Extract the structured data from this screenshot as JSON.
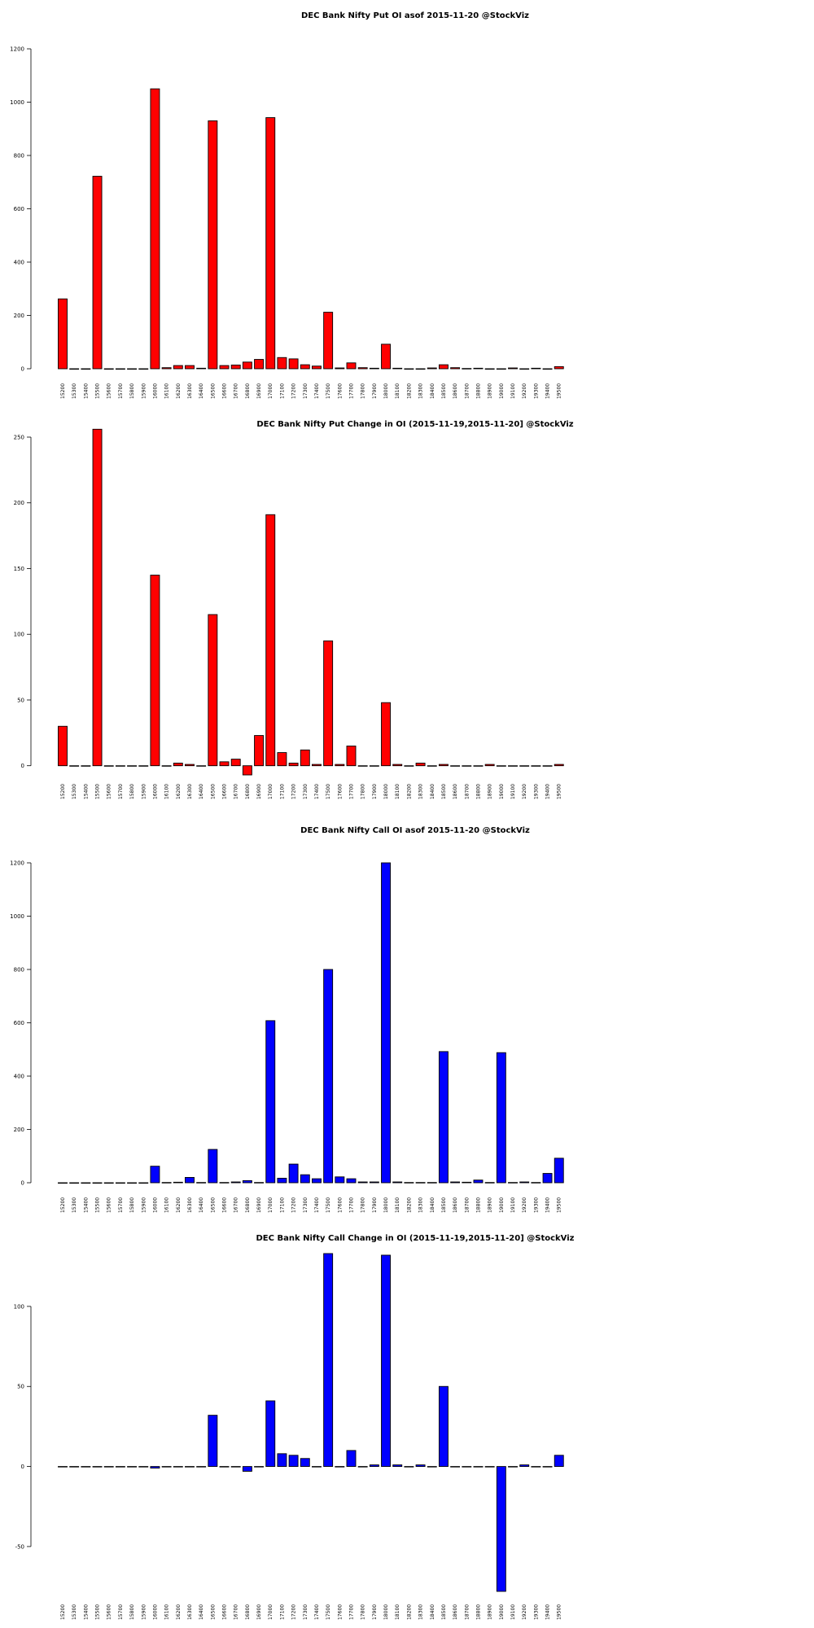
{
  "strikes": [
    "15200",
    "15300",
    "15400",
    "15500",
    "15600",
    "15700",
    "15800",
    "15900",
    "16000",
    "16100",
    "16200",
    "16300",
    "16400",
    "16500",
    "16600",
    "16700",
    "16800",
    "16900",
    "17000",
    "17100",
    "17200",
    "17300",
    "17400",
    "17500",
    "17600",
    "17700",
    "17800",
    "17900",
    "18000",
    "18100",
    "18200",
    "18300",
    "18400",
    "18500",
    "18600",
    "18700",
    "18800",
    "18900",
    "19000",
    "19100",
    "19200",
    "19300",
    "19400",
    "19500"
  ],
  "chart_data": [
    {
      "type": "bar",
      "title": "DEC Bank Nifty Put OI asof 2015-11-20 @StockViz",
      "color": "#ff0000",
      "ylim": [
        0,
        1200
      ],
      "yticks": [
        0,
        200,
        400,
        600,
        800,
        1000,
        1200
      ],
      "values": [
        262,
        0,
        0,
        722,
        0,
        0,
        0,
        0,
        1050,
        4,
        12,
        12,
        2,
        930,
        12,
        14,
        25,
        35,
        942,
        42,
        37,
        15,
        10,
        212,
        3,
        22,
        4,
        2,
        92,
        2,
        0,
        0,
        3,
        15,
        4,
        1,
        2,
        0,
        0,
        3,
        0,
        2,
        0,
        8
      ]
    },
    {
      "type": "bar",
      "title": "DEC Bank Nifty Put Change in OI (2015-11-19,2015-11-20] @StockViz",
      "color": "#ff0000",
      "ylim": [
        -7,
        250
      ],
      "yticks": [
        0,
        50,
        100,
        150,
        200,
        250
      ],
      "values": [
        30,
        0,
        0,
        256,
        0,
        0,
        0,
        0,
        145,
        0,
        2,
        1,
        0,
        115,
        3,
        5,
        -7,
        23,
        191,
        10,
        2,
        12,
        1,
        95,
        1,
        15,
        0,
        0,
        48,
        1,
        0,
        2,
        0,
        1,
        0,
        0,
        0,
        1,
        0,
        0,
        0,
        0,
        0,
        1
      ]
    },
    {
      "type": "bar",
      "title": "DEC Bank Nifty Call OI asof 2015-11-20 @StockViz",
      "color": "#0000ff",
      "ylim": [
        0,
        1200
      ],
      "yticks": [
        0,
        200,
        400,
        600,
        800,
        1000,
        1200
      ],
      "values": [
        0,
        0,
        0,
        0,
        0,
        0,
        0,
        0,
        62,
        1,
        2,
        20,
        1,
        125,
        1,
        3,
        8,
        1,
        608,
        17,
        70,
        30,
        15,
        800,
        22,
        15,
        3,
        3,
        1200,
        3,
        1,
        1,
        1,
        492,
        3,
        2,
        10,
        1,
        488,
        1,
        3,
        1,
        35,
        92
      ]
    },
    {
      "type": "bar",
      "title": "DEC Bank Nifty Call Change in OI (2015-11-19,2015-11-20] @StockViz",
      "color": "#0000ff",
      "ylim": [
        -78,
        133
      ],
      "yticks": [
        -50,
        0,
        50,
        100
      ],
      "values": [
        0,
        0,
        0,
        0,
        0,
        0,
        0,
        0,
        -1,
        0,
        0,
        0,
        0,
        32,
        0,
        0,
        -3,
        0,
        41,
        8,
        7,
        5,
        0,
        133,
        0,
        10,
        0,
        1,
        132,
        1,
        0,
        1,
        0,
        50,
        0,
        0,
        0,
        0,
        -78,
        0,
        1,
        0,
        0,
        7
      ]
    }
  ]
}
